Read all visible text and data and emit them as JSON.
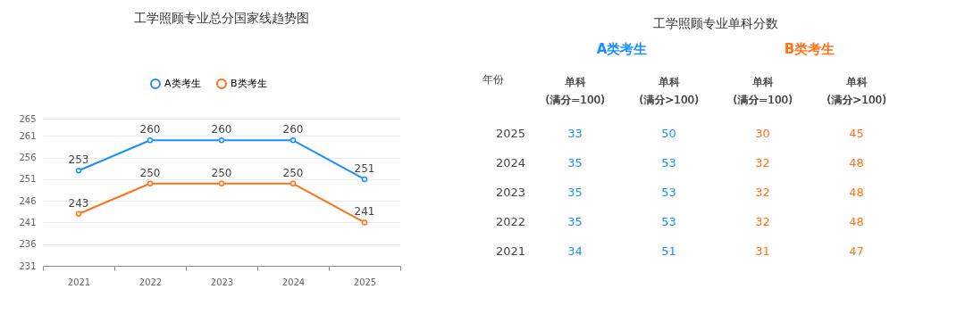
{
  "chart_data": [
    {
      "type": "line",
      "title": "工学照顾专业总分国家线趋势图",
      "categories": [
        "2021",
        "2022",
        "2023",
        "2024",
        "2025"
      ],
      "series": [
        {
          "name": "A类考生",
          "color": "#1890ff",
          "values": [
            253,
            260,
            260,
            260,
            251
          ]
        },
        {
          "name": "B类考生",
          "color": "#ff7316",
          "values": [
            243,
            250,
            250,
            250,
            241
          ]
        }
      ],
      "ylim": [
        231,
        265
      ],
      "yticks": [
        231,
        236,
        241,
        246,
        251,
        256,
        261,
        265
      ],
      "grid": "y",
      "legend": "top",
      "marker": "circle",
      "line_style": "solid",
      "data_labels": true
    },
    {
      "type": "heatmap",
      "title": "工学照顾专业单科分数",
      "ylabel": "年份",
      "annotations": [
        "A类考生",
        "B类考生"
      ],
      "categories": [
        "单科\n(满分=100)",
        "单科\n(满分>100)",
        "单科\n(满分=100)",
        "单科\n(满分>100)"
      ],
      "y_categories": [
        "2025",
        "2024",
        "2023",
        "2022",
        "2021"
      ],
      "colors": [
        "#1890ff",
        "#1890ff",
        "#ff7316",
        "#ff7316"
      ],
      "cells": [
        [
          33,
          50,
          30,
          45
        ],
        [
          35,
          53,
          32,
          48
        ],
        [
          35,
          53,
          32,
          48
        ],
        [
          35,
          53,
          32,
          48
        ],
        [
          34,
          51,
          31,
          47
        ]
      ],
      "data_labels": true
    }
  ]
}
